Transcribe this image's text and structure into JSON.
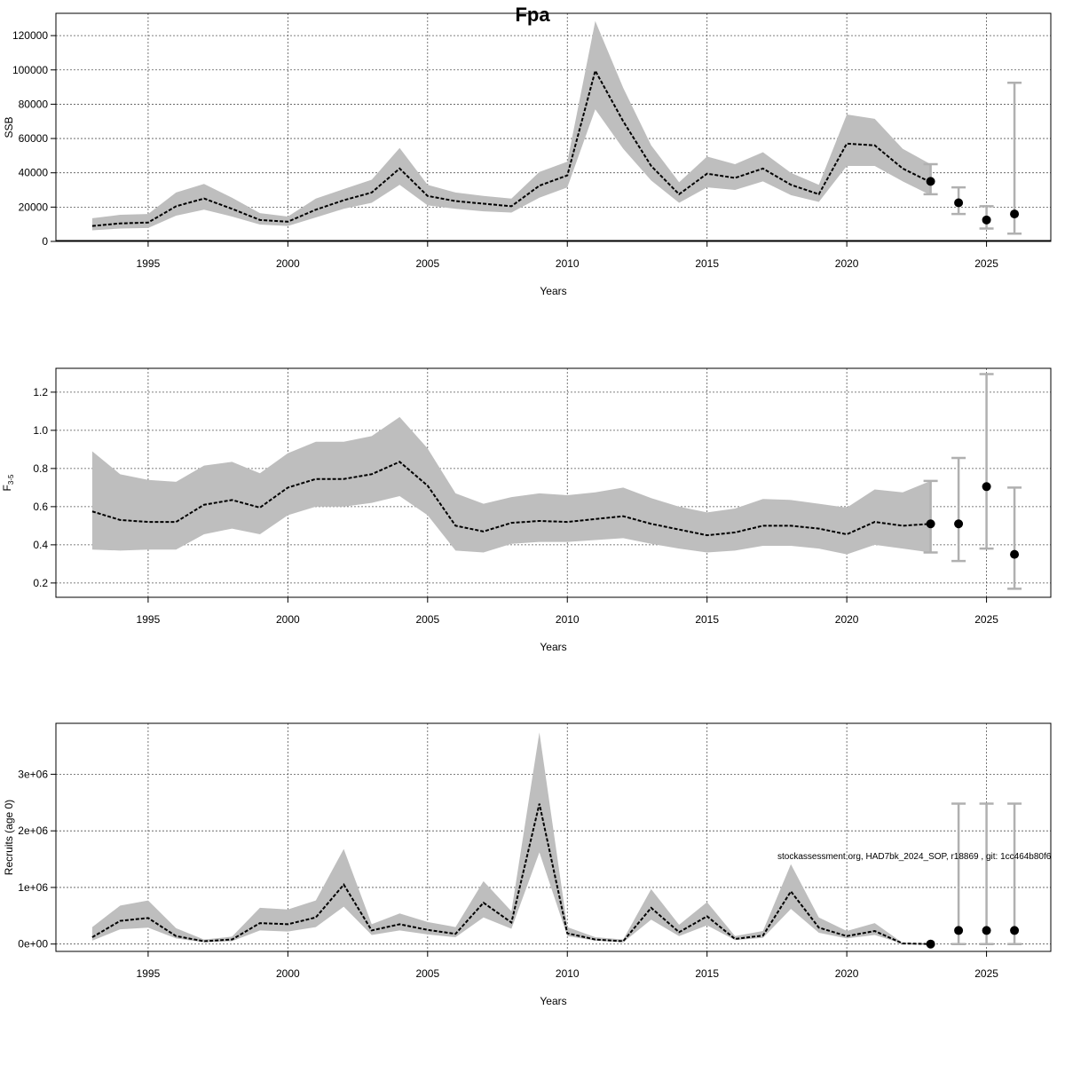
{
  "chart_data": {
    "title": "Fpa",
    "footnote": "stockassessment.org, HAD7bk_2024_SOP, r18869 , git: 1cc464b80f6",
    "panels": [
      {
        "id": "ssb",
        "type": "line",
        "ylabel": "SSB",
        "xlabel": "Years",
        "xlim": [
          1991.7,
          2027.3
        ],
        "ylim": [
          0,
          133000
        ],
        "x_ticks": [
          1995,
          2000,
          2005,
          2010,
          2015,
          2020,
          2025
        ],
        "y_ticks": [
          0,
          20000,
          40000,
          60000,
          80000,
          100000,
          120000
        ],
        "y_tick_labels": [
          "0",
          "20000",
          "40000",
          "60000",
          "80000",
          "100000",
          "120000"
        ],
        "grid": true,
        "years": [
          1993,
          1994,
          1995,
          1996,
          1997,
          1998,
          1999,
          2000,
          2001,
          2002,
          2003,
          2004,
          2005,
          2006,
          2007,
          2008,
          2009,
          2010,
          2011,
          2012,
          2013,
          2014,
          2015,
          2016,
          2017,
          2018,
          2019,
          2020,
          2021,
          2022,
          2023
        ],
        "estimate": [
          9000,
          10500,
          11000,
          20500,
          25000,
          19000,
          12500,
          11500,
          18500,
          24000,
          28500,
          42500,
          26500,
          23500,
          22000,
          20500,
          32500,
          38500,
          99500,
          70000,
          44000,
          27500,
          39500,
          37000,
          42500,
          33000,
          27500,
          57000,
          56000,
          42500,
          34500
        ],
        "lower": [
          6500,
          7500,
          7800,
          15000,
          18500,
          14500,
          9800,
          9000,
          14000,
          19000,
          22500,
          33000,
          21000,
          19000,
          17500,
          16800,
          25500,
          31500,
          77000,
          54000,
          35500,
          22500,
          31500,
          30000,
          35000,
          27000,
          23000,
          44000,
          44000,
          35000,
          27000
        ],
        "upper": [
          13500,
          15500,
          16000,
          28500,
          33500,
          25500,
          16500,
          14500,
          25000,
          30500,
          36000,
          54500,
          33000,
          28500,
          26500,
          25000,
          40500,
          46500,
          128500,
          89500,
          56000,
          34500,
          49500,
          45000,
          52000,
          40000,
          33000,
          74000,
          71500,
          54000,
          45000
        ],
        "forecast_x": [
          2023,
          2024,
          2025,
          2026
        ],
        "forecast_median": [
          35000,
          22500,
          12500,
          16000
        ],
        "forecast_lower": [
          27500,
          16000,
          7500,
          4500
        ],
        "forecast_upper": [
          45000,
          31500,
          20500,
          92500
        ]
      },
      {
        "id": "f",
        "type": "line",
        "ylabel": "F3-5",
        "ylabel_main": "F",
        "ylabel_sub": "3-5",
        "xlabel": "Years",
        "xlim": [
          1991.7,
          2027.3
        ],
        "ylim": [
          0.125,
          1.325
        ],
        "x_ticks": [
          1995,
          2000,
          2005,
          2010,
          2015,
          2020,
          2025
        ],
        "y_ticks": [
          0.2,
          0.4,
          0.6,
          0.8,
          1.0,
          1.2
        ],
        "y_tick_labels": [
          "0.2",
          "0.4",
          "0.6",
          "0.8",
          "1.0",
          "1.2"
        ],
        "grid": true,
        "years": [
          1993,
          1994,
          1995,
          1996,
          1997,
          1998,
          1999,
          2000,
          2001,
          2002,
          2003,
          2004,
          2005,
          2006,
          2007,
          2008,
          2009,
          2010,
          2011,
          2012,
          2013,
          2014,
          2015,
          2016,
          2017,
          2018,
          2019,
          2020,
          2021,
          2022,
          2023
        ],
        "estimate": [
          0.575,
          0.53,
          0.52,
          0.52,
          0.61,
          0.635,
          0.595,
          0.7,
          0.745,
          0.745,
          0.77,
          0.835,
          0.71,
          0.5,
          0.47,
          0.515,
          0.525,
          0.52,
          0.535,
          0.55,
          0.51,
          0.48,
          0.45,
          0.465,
          0.5,
          0.5,
          0.485,
          0.455,
          0.52,
          0.5,
          0.51
        ],
        "lower": [
          0.375,
          0.37,
          0.375,
          0.375,
          0.455,
          0.485,
          0.455,
          0.555,
          0.6,
          0.6,
          0.62,
          0.655,
          0.555,
          0.37,
          0.36,
          0.405,
          0.415,
          0.415,
          0.425,
          0.435,
          0.405,
          0.38,
          0.36,
          0.37,
          0.395,
          0.395,
          0.38,
          0.35,
          0.4,
          0.38,
          0.36
        ],
        "upper": [
          0.89,
          0.77,
          0.74,
          0.73,
          0.815,
          0.835,
          0.775,
          0.88,
          0.94,
          0.94,
          0.97,
          1.07,
          0.905,
          0.67,
          0.615,
          0.65,
          0.67,
          0.66,
          0.675,
          0.7,
          0.645,
          0.6,
          0.57,
          0.59,
          0.64,
          0.635,
          0.615,
          0.595,
          0.69,
          0.675,
          0.735
        ],
        "forecast_x": [
          2023,
          2024,
          2025,
          2026
        ],
        "forecast_median": [
          0.51,
          0.51,
          0.705,
          0.35
        ],
        "forecast_lower": [
          0.36,
          0.315,
          0.38,
          0.17
        ],
        "forecast_upper": [
          0.735,
          0.855,
          1.295,
          0.7
        ]
      },
      {
        "id": "rec",
        "type": "line",
        "ylabel": "Recruits (age 0)",
        "xlabel": "Years",
        "xlim": [
          1991.7,
          2027.3
        ],
        "ylim": [
          -130000,
          3900000
        ],
        "x_ticks": [
          1995,
          2000,
          2005,
          2010,
          2015,
          2020,
          2025
        ],
        "y_ticks": [
          0,
          1000000,
          2000000,
          3000000
        ],
        "y_tick_labels": [
          "0e+00",
          "1e+06",
          "2e+06",
          "3e+06"
        ],
        "grid": true,
        "years": [
          1993,
          1994,
          1995,
          1996,
          1997,
          1998,
          1999,
          2000,
          2001,
          2002,
          2003,
          2004,
          2005,
          2006,
          2007,
          2008,
          2009,
          2010,
          2011,
          2012,
          2013,
          2014,
          2015,
          2016,
          2017,
          2018,
          2019,
          2020,
          2021,
          2022,
          2023
        ],
        "estimate": [
          120000,
          410000,
          460000,
          140000,
          50000,
          80000,
          370000,
          350000,
          470000,
          1050000,
          240000,
          350000,
          250000,
          180000,
          730000,
          380000,
          2480000,
          190000,
          80000,
          50000,
          640000,
          210000,
          490000,
          90000,
          150000,
          930000,
          290000,
          140000,
          230000,
          10000,
          0
        ],
        "lower": [
          60000,
          260000,
          290000,
          100000,
          30000,
          50000,
          240000,
          220000,
          300000,
          660000,
          160000,
          240000,
          170000,
          120000,
          470000,
          270000,
          1620000,
          140000,
          60000,
          30000,
          430000,
          140000,
          330000,
          70000,
          110000,
          620000,
          200000,
          100000,
          160000,
          5000,
          0
        ],
        "upper": [
          300000,
          680000,
          770000,
          280000,
          80000,
          130000,
          640000,
          610000,
          770000,
          1680000,
          350000,
          540000,
          390000,
          300000,
          1110000,
          580000,
          3740000,
          300000,
          120000,
          80000,
          970000,
          340000,
          740000,
          140000,
          230000,
          1410000,
          470000,
          230000,
          370000,
          20000,
          0
        ],
        "forecast_x": [
          2023,
          2024,
          2025,
          2026
        ],
        "forecast_median": [
          0,
          240000,
          240000,
          240000
        ],
        "forecast_lower": [
          0,
          0,
          0,
          0
        ],
        "forecast_upper": [
          0,
          2480000,
          2480000,
          2480000
        ]
      }
    ]
  }
}
